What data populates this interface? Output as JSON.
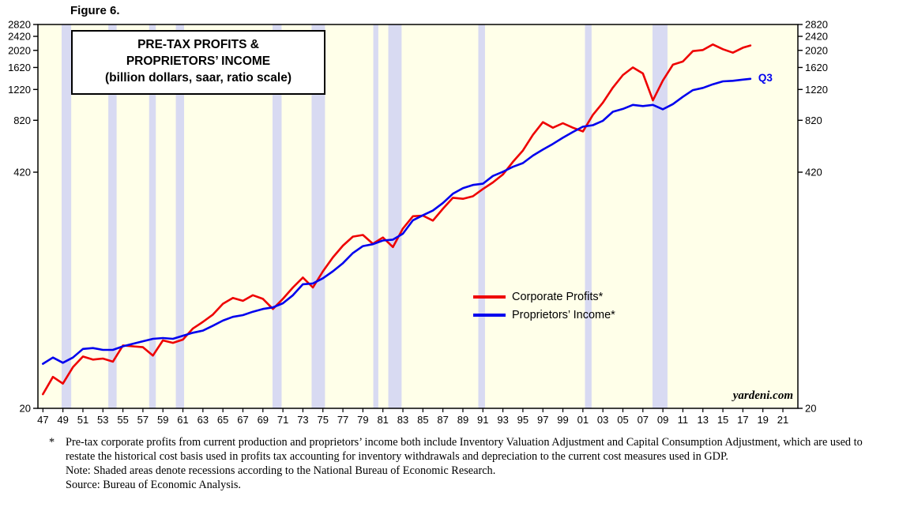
{
  "figure": {
    "label": "Figure 6."
  },
  "annotations": {
    "watermark": "yardeni.com"
  },
  "chart_data": {
    "type": "line",
    "title": "PRE-TAX PROFITS & PROPRIETORS’ INCOME",
    "subtitle": "(billion dollars, saar, ratio scale)",
    "title_lines": [
      "PRE-TAX PROFITS &",
      "PROPRIETORS’ INCOME",
      "(billion dollars, saar, ratio scale)"
    ],
    "y_scale": "log",
    "ylim": [
      20,
      2820
    ],
    "yticks": [
      20,
      420,
      820,
      1220,
      1620,
      2020,
      2420,
      2820
    ],
    "xlim": [
      1946.5,
      2022.5
    ],
    "xticks": [
      1947,
      1949,
      1951,
      1953,
      1955,
      1957,
      1959,
      1961,
      1963,
      1965,
      1967,
      1969,
      1971,
      1973,
      1975,
      1977,
      1979,
      1981,
      1983,
      1985,
      1987,
      1989,
      1991,
      1993,
      1995,
      1997,
      1999,
      2001,
      2003,
      2005,
      2007,
      2009,
      2011,
      2013,
      2015,
      2017,
      2019,
      2021
    ],
    "xtick_labels": [
      "47",
      "49",
      "51",
      "53",
      "55",
      "57",
      "59",
      "61",
      "63",
      "65",
      "67",
      "69",
      "71",
      "73",
      "75",
      "77",
      "79",
      "81",
      "83",
      "85",
      "87",
      "89",
      "91",
      "93",
      "95",
      "97",
      "99",
      "01",
      "03",
      "05",
      "07",
      "09",
      "11",
      "13",
      "15",
      "17",
      "19",
      "21"
    ],
    "recessions": [
      [
        1948.87,
        1949.83
      ],
      [
        1953.54,
        1954.37
      ],
      [
        1957.62,
        1958.29
      ],
      [
        1960.29,
        1961.12
      ],
      [
        1969.96,
        1970.87
      ],
      [
        1973.87,
        1975.21
      ],
      [
        1980.04,
        1980.54
      ],
      [
        1981.54,
        1982.87
      ],
      [
        1990.54,
        1991.21
      ],
      [
        2001.21,
        2001.87
      ],
      [
        2007.96,
        2009.46
      ]
    ],
    "plot_bg": "#FFFFE9",
    "recession_color": "#D8DAF2",
    "axis_color": "#000000",
    "legend_position": "center-right",
    "x": [
      1947,
      1948,
      1949,
      1950,
      1951,
      1952,
      1953,
      1954,
      1955,
      1956,
      1957,
      1958,
      1959,
      1960,
      1961,
      1962,
      1963,
      1964,
      1965,
      1966,
      1967,
      1968,
      1969,
      1970,
      1971,
      1972,
      1973,
      1974,
      1975,
      1976,
      1977,
      1978,
      1979,
      1980,
      1981,
      1982,
      1983,
      1984,
      1985,
      1986,
      1987,
      1988,
      1989,
      1990,
      1991,
      1992,
      1993,
      1994,
      1995,
      1996,
      1997,
      1998,
      1999,
      2000,
      2001,
      2002,
      2003,
      2004,
      2005,
      2006,
      2007,
      2008,
      2009,
      2010,
      2011,
      2012,
      2013,
      2014,
      2015,
      2016,
      2017,
      2017.75
    ],
    "series": [
      {
        "name": "Corporate Profits*",
        "color": "#EE0000",
        "values": [
          24,
          30,
          27.5,
          34,
          39,
          37.5,
          38,
          36.5,
          45,
          44.5,
          44,
          39.5,
          48,
          46.5,
          48.5,
          56,
          61,
          67,
          77,
          83,
          80,
          86,
          82,
          72,
          82,
          95,
          108,
          95,
          117,
          140,
          163,
          183,
          187,
          167,
          181,
          160,
          203,
          238,
          240,
          225,
          262,
          302,
          298,
          308,
          338,
          368,
          408,
          480,
          555,
          680,
          800,
          745,
          790,
          745,
          710,
          880,
          1030,
          1250,
          1470,
          1620,
          1500,
          1060,
          1370,
          1680,
          1750,
          2000,
          2030,
          2180,
          2050,
          1960,
          2090,
          2150
        ]
      },
      {
        "name": "Proprietors’ Income*",
        "color": "#0000EE",
        "end_label": "Q3",
        "values": [
          35.5,
          38.5,
          36,
          38.5,
          43,
          43.5,
          42.5,
          42.5,
          44.5,
          46,
          47.5,
          49,
          49.5,
          49,
          51,
          53,
          54.5,
          58,
          62,
          65,
          66.5,
          69.5,
          72,
          73.5,
          77.5,
          86,
          99,
          100,
          107,
          117,
          130,
          148,
          162,
          166,
          174,
          176,
          190,
          226,
          241,
          256,
          282,
          318,
          342,
          356,
          362,
          400,
          422,
          450,
          472,
          520,
          562,
          605,
          655,
          705,
          755,
          770,
          815,
          915,
          950,
          1000,
          985,
          1000,
          945,
          1010,
          1110,
          1210,
          1245,
          1305,
          1355,
          1365,
          1385,
          1400
        ]
      }
    ]
  },
  "footnotes": {
    "marker": "*",
    "asterisk_note": "Pre-tax corporate profits from current production and proprietors’ income both include Inventory Valuation Adjustment and Capital Consumption Adjustment, which are used to restate the historical cost basis used in profits tax accounting for inventory withdrawals and depreciation to the current cost measures used in GDP.",
    "note": "Note: Shaded areas denote recessions according to the National Bureau of Economic Research.",
    "source": "Source: Bureau of Economic Analysis."
  }
}
